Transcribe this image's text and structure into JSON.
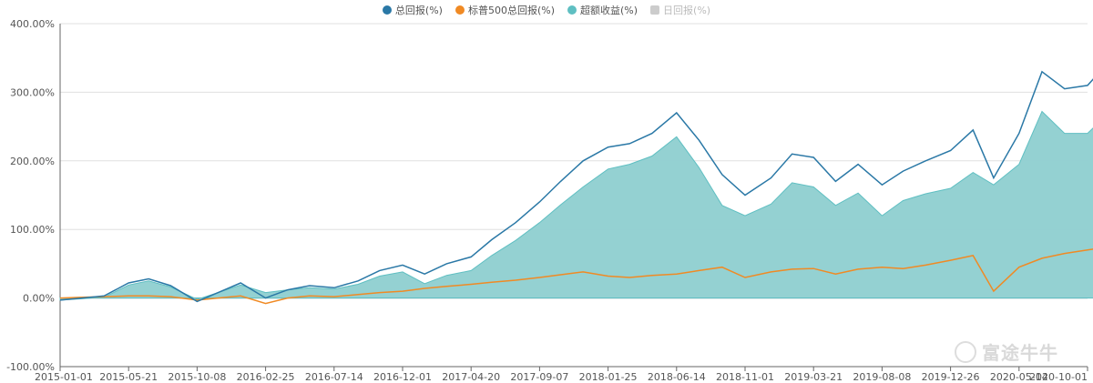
{
  "chart_data": {
    "type": "area",
    "legend": [
      {
        "label": "总回报(%)",
        "color": "#2a78a6",
        "active": true
      },
      {
        "label": "标普500总回报(%)",
        "color": "#f08a24",
        "active": true
      },
      {
        "label": "超额收益(%)",
        "color": "#5fbfc2",
        "active": true
      },
      {
        "label": "日回报(%)",
        "color": "#cccccc",
        "active": false
      }
    ],
    "y_ticks": [
      "400.00%",
      "300.00%",
      "200.00%",
      "100.00%",
      "0.00%",
      "-100.00%"
    ],
    "ylim": [
      -100,
      400
    ],
    "x_ticks": [
      "2015-01-01",
      "2015-05-21",
      "2015-10-08",
      "2016-02-25",
      "2016-07-14",
      "2016-12-01",
      "2017-04-20",
      "2017-09-07",
      "2018-01-25",
      "2018-06-14",
      "2018-11-01",
      "2019-03-21",
      "2019-08-08",
      "2019-12-26",
      "2020-05-14",
      "2020-10-01"
    ],
    "x": [
      "2015-01-01",
      "2015-02-15",
      "2015-04-01",
      "2015-05-21",
      "2015-07-01",
      "2015-08-15",
      "2015-10-08",
      "2015-11-20",
      "2016-01-05",
      "2016-02-25",
      "2016-04-10",
      "2016-05-25",
      "2016-07-14",
      "2016-09-01",
      "2016-10-15",
      "2016-12-01",
      "2017-01-15",
      "2017-03-01",
      "2017-04-20",
      "2017-06-01",
      "2017-07-20",
      "2017-09-07",
      "2017-10-20",
      "2017-12-05",
      "2018-01-25",
      "2018-03-10",
      "2018-04-25",
      "2018-06-14",
      "2018-07-30",
      "2018-09-15",
      "2018-11-01",
      "2018-12-24",
      "2019-02-05",
      "2019-03-21",
      "2019-05-05",
      "2019-06-20",
      "2019-08-08",
      "2019-09-20",
      "2019-11-05",
      "2019-12-26",
      "2020-02-10",
      "2020-03-23",
      "2020-05-14",
      "2020-06-30",
      "2020-08-15",
      "2020-10-01",
      "2020-10-20"
    ],
    "series": [
      {
        "name": "总回报(%)",
        "values": [
          -3,
          0,
          3,
          22,
          28,
          18,
          -5,
          8,
          22,
          0,
          12,
          18,
          15,
          25,
          40,
          48,
          35,
          50,
          60,
          85,
          110,
          140,
          170,
          200,
          220,
          225,
          240,
          270,
          230,
          180,
          150,
          175,
          210,
          205,
          170,
          195,
          165,
          185,
          200,
          215,
          245,
          175,
          240,
          330,
          305,
          310,
          325
        ]
      },
      {
        "name": "标普500总回报(%)",
        "values": [
          0,
          1,
          2,
          3,
          3,
          2,
          -3,
          0,
          3,
          -8,
          0,
          3,
          2,
          5,
          8,
          10,
          14,
          17,
          20,
          23,
          26,
          30,
          34,
          38,
          32,
          30,
          33,
          35,
          40,
          45,
          30,
          38,
          42,
          43,
          35,
          42,
          45,
          43,
          48,
          55,
          62,
          10,
          45,
          58,
          65,
          70,
          72
        ]
      },
      {
        "name": "超额收益(%)",
        "values": [
          -3,
          -1,
          1,
          19,
          25,
          16,
          -2,
          8,
          19,
          8,
          12,
          15,
          13,
          20,
          32,
          38,
          21,
          33,
          40,
          62,
          84,
          110,
          136,
          162,
          188,
          195,
          207,
          235,
          190,
          135,
          120,
          137,
          168,
          162,
          135,
          153,
          120,
          142,
          152,
          160,
          183,
          165,
          195,
          272,
          240,
          240,
          253
        ]
      }
    ]
  },
  "watermark": {
    "text": "富途牛牛"
  }
}
